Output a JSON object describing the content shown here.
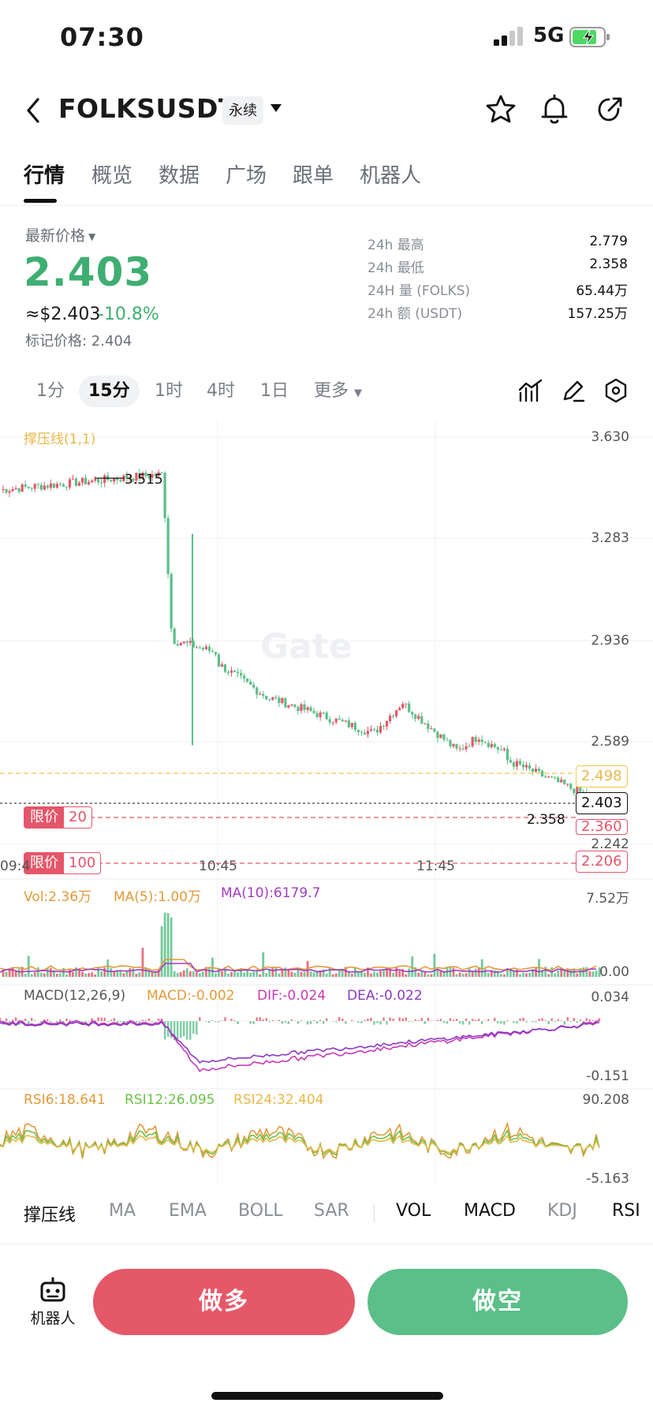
{
  "status_bar": {
    "time": "07:30",
    "network": "5G"
  },
  "header": {
    "symbol": "FOLKSUSDT",
    "contract_type": "永续"
  },
  "tabs": [
    {
      "label": "行情"
    },
    {
      "label": "概览"
    },
    {
      "label": "数据"
    },
    {
      "label": "广场"
    },
    {
      "label": "跟单"
    },
    {
      "label": "机器人"
    }
  ],
  "price_block": {
    "label": "最新价格",
    "last_price": "2.403",
    "usd_price": "≈$2.403",
    "change": "-10.8%",
    "mark_price": "标记价格: 2.404"
  },
  "stats": [
    {
      "label": "24h  最高",
      "value": "2.779"
    },
    {
      "label": "24h  最低",
      "value": "2.358"
    },
    {
      "label": "24H  量 (FOLKS)",
      "value": "65.44万"
    },
    {
      "label": "24h  额 (USDT)",
      "value": "157.25万"
    }
  ],
  "intervals": [
    {
      "label": "1分"
    },
    {
      "label": "15分"
    },
    {
      "label": "1时"
    },
    {
      "label": "4时"
    },
    {
      "label": "1日"
    },
    {
      "label": "更多"
    }
  ],
  "chart": {
    "overlay_label": "撑压线(1,1)",
    "y_axis": [
      "3.630",
      "3.283",
      "2.936",
      "2.589",
      "2.242"
    ],
    "high_marker": "3.515",
    "low_marker": "2.358",
    "resistance_tag": "2.498",
    "current_tag": "2.403",
    "limit_tag_1": "2.360",
    "limit_tag_2": "2.206",
    "order_1": {
      "key": "限价",
      "value": "20"
    },
    "order_2": {
      "key": "限价",
      "value": "100"
    },
    "time_labels": [
      "09:4",
      "10:45",
      "11:45"
    ],
    "watermark": "Gate",
    "colors": {
      "up": "#e55868",
      "down": "#5bbf88",
      "support": "#f2c84b"
    }
  },
  "volume": {
    "vol": "Vol:2.36万",
    "ma5": "MA(5):1.00万",
    "ma10": "MA(10):6179.7",
    "axis_top": "7.52万",
    "axis_bottom": "0.00"
  },
  "macd": {
    "title": "MACD(12,26,9)",
    "macd": "MACD:-0.002",
    "dif": "DIF:-0.024",
    "dea": "DEA:-0.022",
    "axis_top": "0.034",
    "axis_bottom": "-0.151"
  },
  "rsi": {
    "rsi6": "RSI6:18.641",
    "rsi12": "RSI12:26.095",
    "rsi24": "RSI24:32.404",
    "axis_top": "90.208",
    "axis_bottom": "-5.163"
  },
  "indicator_tabs": [
    {
      "label": "撑压线",
      "on": true
    },
    {
      "label": "MA",
      "on": false
    },
    {
      "label": "EMA",
      "on": false
    },
    {
      "label": "BOLL",
      "on": false
    },
    {
      "label": "SAR",
      "on": false
    },
    {
      "label": "VOL",
      "on": true
    },
    {
      "label": "MACD",
      "on": true
    },
    {
      "label": "KDJ",
      "on": false
    },
    {
      "label": "RSI",
      "on": true
    }
  ],
  "bottom_bar": {
    "robot_label": "机器人",
    "long_label": "做多",
    "short_label": "做空"
  }
}
